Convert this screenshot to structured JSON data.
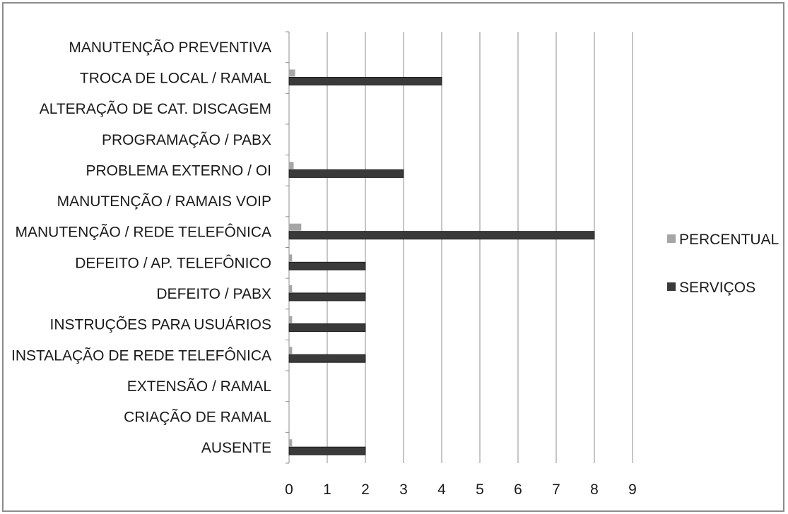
{
  "chart_data": {
    "type": "bar",
    "orientation": "horizontal",
    "categories": [
      "AUSENTE",
      "CRIAÇÃO DE RAMAL",
      "EXTENSÃO / RAMAL",
      "INSTALAÇÃO DE REDE TELEFÔNICA",
      "INSTRUÇÕES PARA USUÁRIOS",
      "DEFEITO / PABX",
      "DEFEITO / AP. TELEFÔNICO",
      "MANUTENÇÃO / REDE TELEFÔNICA",
      "MANUTENÇÃO / RAMAIS VOIP",
      "PROBLEMA EXTERNO / OI",
      "PROGRAMAÇÃO / PABX",
      "ALTERAÇÃO DE CAT. DISCAGEM",
      "TROCA DE LOCAL / RAMAL",
      "MANUTENÇÃO PREVENTIVA"
    ],
    "series": [
      {
        "name": "SERVIÇOS",
        "color": "#3a3a3a",
        "values": [
          2,
          0,
          0,
          2,
          2,
          2,
          2,
          8,
          0,
          3,
          0,
          0,
          4,
          0
        ]
      },
      {
        "name": "PERCENTUAL",
        "color": "#a6a6a6",
        "values": [
          0.08,
          0,
          0,
          0.08,
          0.08,
          0.08,
          0.08,
          0.32,
          0,
          0.12,
          0,
          0,
          0.16,
          0
        ]
      }
    ],
    "xlim": [
      0,
      9
    ],
    "xticks": [
      "0",
      "1",
      "2",
      "3",
      "4",
      "5",
      "6",
      "7",
      "8",
      "9"
    ],
    "grid": "vertical",
    "legend": "right",
    "title": "",
    "xlabel": "",
    "ylabel": ""
  }
}
